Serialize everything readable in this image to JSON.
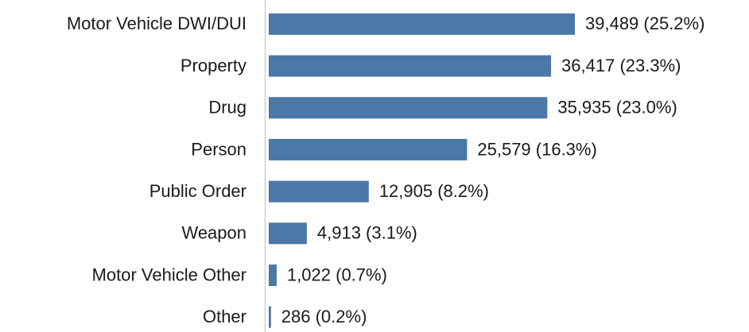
{
  "chart_data": {
    "type": "hbar",
    "categories": [
      "Motor Vehicle DWI/DUI",
      "Property",
      "Drug",
      "Person",
      "Public Order",
      "Weapon",
      "Motor Vehicle Other",
      "Other"
    ],
    "values": [
      39489,
      36417,
      35935,
      25579,
      12905,
      4913,
      1022,
      286
    ],
    "value_labels": [
      "39,489 (25.2%)",
      "36,417 (23.3%)",
      "35,935 (23.0%)",
      "25,579 (16.3%)",
      "12,905 (8.2%)",
      "4,913 (3.1%)",
      "1,022 (0.7%)",
      "286 (0.2%)"
    ],
    "color": "#4a78a7"
  }
}
